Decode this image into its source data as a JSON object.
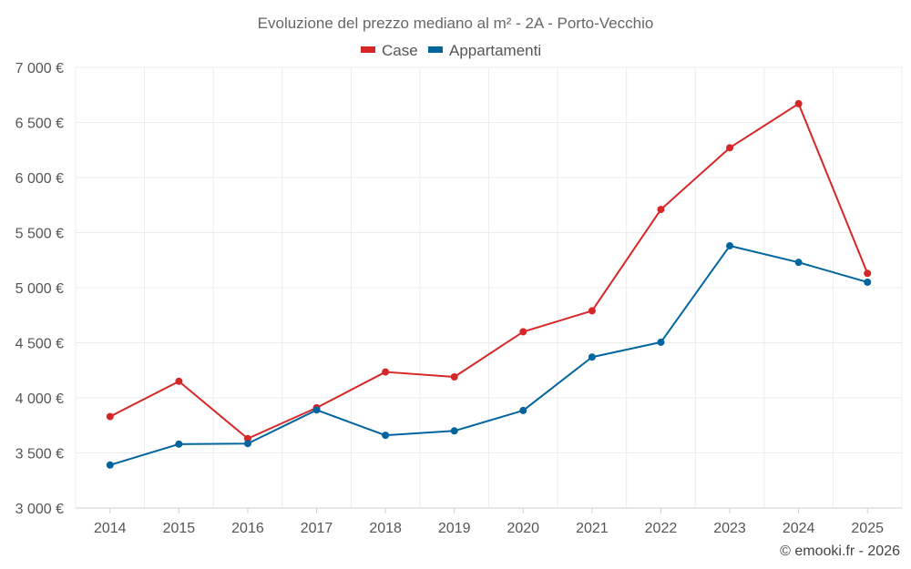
{
  "chart_data": {
    "type": "line",
    "title": "Evoluzione del prezzo mediano al m² - 2A - Porto-Vecchio",
    "categories": [
      "2014",
      "2015",
      "2016",
      "2017",
      "2018",
      "2019",
      "2020",
      "2021",
      "2022",
      "2023",
      "2024",
      "2025"
    ],
    "series": [
      {
        "name": "Case",
        "color": "#d62728",
        "values": [
          3830,
          4150,
          3630,
          3910,
          4235,
          4190,
          4600,
          4790,
          5710,
          6270,
          6670,
          5130
        ]
      },
      {
        "name": "Appartamenti",
        "color": "#00659e",
        "values": [
          3390,
          3580,
          3585,
          3890,
          3660,
          3700,
          3885,
          4370,
          4505,
          5380,
          5230,
          5050
        ]
      }
    ],
    "ylim": [
      3000,
      7000
    ],
    "yticks": [
      3000,
      3500,
      4000,
      4500,
      5000,
      5500,
      6000,
      6500,
      7000
    ],
    "ytick_labels": [
      "3 000 €",
      "3 500 €",
      "4 000 €",
      "4 500 €",
      "5 000 €",
      "5 500 €",
      "6 000 €",
      "6 500 €",
      "7 000 €"
    ],
    "xlabel": "",
    "ylabel": "",
    "legend_position": "top-center",
    "grid": true
  },
  "credit": "© emooki.fr - 2026"
}
